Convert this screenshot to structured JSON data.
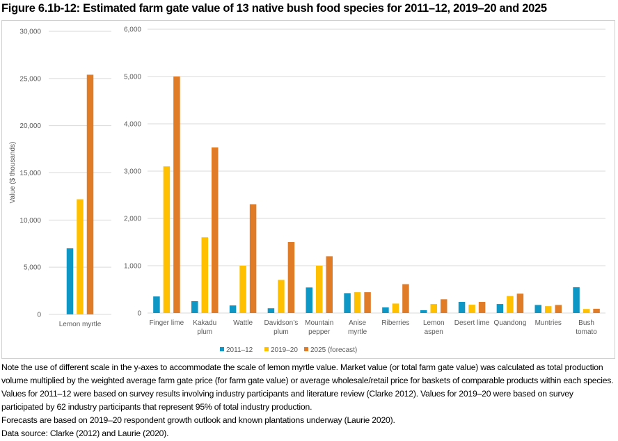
{
  "title": "Figure 6.1b-12: Estimated farm gate value of 13 native bush food species for 2011–12, 2019–20 and 2025",
  "chart_data": [
    {
      "type": "bar",
      "ylabel": "Value ($ thousands)",
      "ylim": [
        0,
        30000
      ],
      "yticks": [
        "0",
        "5,000",
        "10,000",
        "15,000",
        "20,000",
        "25,000",
        "30,000"
      ],
      "ytick_values": [
        0,
        5000,
        10000,
        15000,
        20000,
        25000,
        30000
      ],
      "grid": true,
      "categories": [
        [
          "Lemon myrtle"
        ]
      ],
      "series": [
        {
          "name": "2011–12",
          "color": "#0e96c5",
          "values": [
            7000
          ]
        },
        {
          "name": "2019–20",
          "color": "#ffc000",
          "values": [
            12200
          ]
        },
        {
          "name": "2025 (forecast)",
          "color": "#e07b28",
          "values": [
            25400
          ]
        }
      ]
    },
    {
      "type": "bar",
      "ylim": [
        0,
        6000
      ],
      "yticks": [
        "0",
        "1,000",
        "2,000",
        "3,000",
        "4,000",
        "5,000",
        "6,000"
      ],
      "ytick_values": [
        0,
        1000,
        2000,
        3000,
        4000,
        5000,
        6000
      ],
      "grid": true,
      "categories": [
        [
          "Finger lime"
        ],
        [
          "Kakadu",
          "plum"
        ],
        [
          "Wattle"
        ],
        [
          "Davidson’s",
          "plum"
        ],
        [
          "Mountain",
          "pepper"
        ],
        [
          "Anise",
          "myrtle"
        ],
        [
          "Riberries"
        ],
        [
          "Lemon",
          "aspen"
        ],
        [
          "Desert lime"
        ],
        [
          "Quandong"
        ],
        [
          "Muntries"
        ],
        [
          "Bush",
          "tomato"
        ]
      ],
      "series": [
        {
          "name": "2011–12",
          "color": "#0e96c5",
          "values": [
            350,
            250,
            160,
            100,
            540,
            420,
            120,
            60,
            235,
            190,
            170,
            545
          ]
        },
        {
          "name": "2019–20",
          "color": "#ffc000",
          "values": [
            3100,
            1600,
            1000,
            700,
            1000,
            440,
            200,
            190,
            175,
            360,
            145,
            85
          ]
        },
        {
          "name": "2025 (forecast)",
          "color": "#e07b28",
          "values": [
            5000,
            3500,
            2300,
            1500,
            1200,
            440,
            610,
            290,
            235,
            410,
            170,
            90
          ]
        }
      ],
      "legend": "bottom"
    }
  ],
  "legend": [
    "2011–12",
    "2019–20",
    "2025 (forecast)"
  ],
  "notes": [
    "Note the use of different scale in the y-axes to accommodate the scale of lemon myrtle value. Market value (or total farm gate value) was calculated as total production volume multiplied by the weighted average farm gate price (for farm gate value) or average wholesale/retail price for baskets of comparable products within each species. Values for 2011–12 were based on survey results involving industry participants and literature review (Clarke 2012). Values for 2019–20 were based on survey participated by 62 industry participants that represent 95% of total industry production.",
    "Forecasts are based on 2019–20 respondent growth outlook and known plantations underway (Laurie 2020).",
    "Data source: Clarke (2012) and Laurie (2020)."
  ]
}
